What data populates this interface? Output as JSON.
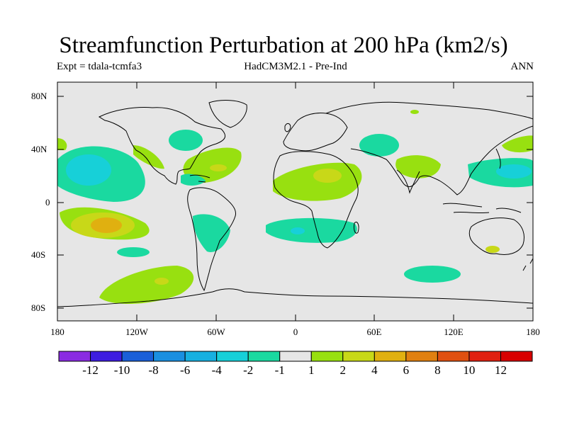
{
  "title": "Streamfunction Perturbation at 200 hPa (km2/s)",
  "left_label": "Expt = tdala-tcmfa3",
  "center_label": "HadCM3M2.1 - Pre-Ind",
  "right_label": "ANN",
  "lat_labels": [
    "80N",
    "40N",
    "0",
    "40S",
    "80S"
  ],
  "lon_labels": [
    "180",
    "120W",
    "60W",
    "0",
    "60E",
    "120E",
    "180"
  ],
  "colorbar": {
    "labels": [
      "-12",
      "-10",
      "-8",
      "-6",
      "-4",
      "-2",
      "-1",
      "1",
      "2",
      "4",
      "6",
      "8",
      "10",
      "12"
    ],
    "colors": [
      "#8a2be2",
      "#3d1de0",
      "#1a5fd8",
      "#1a8fe0",
      "#17b0e0",
      "#17d0d8",
      "#1ad9a0",
      "#e6e6e6",
      "#98e010",
      "#c8d818",
      "#e0b010",
      "#e08010",
      "#e05010",
      "#e02010",
      "#d80000"
    ]
  },
  "map": {
    "background": "#e6e6e6",
    "coast": "#000000"
  }
}
